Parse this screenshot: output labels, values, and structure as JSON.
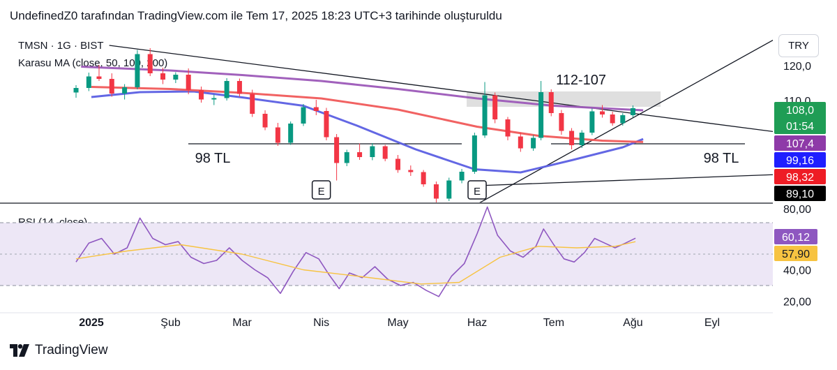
{
  "header": {
    "caption": "UndefinedZ0 tarafından TradingView.com ile Tem 17, 2025 18:23 UTC+3 tarihinde oluşturuldu"
  },
  "legend": {
    "symbol": "TMSN · 1G · BIST",
    "ma_indicator": "Karasu MA (close, 50, 100, 200)",
    "rsi_indicator": "RSI (14, close)"
  },
  "currency_button": "TRY",
  "brand": {
    "name": "TradingView",
    "logo_icon": "tradingview-logo-icon"
  },
  "colors": {
    "up": "#089981",
    "down": "#f23645",
    "ma50": "#5b5fe3",
    "ma100": "#f05a5a",
    "ma200": "#9c59b8",
    "rsi": "#8e57c0",
    "rsi_ma": "#f7c341",
    "rsi_band": "#ede7f6",
    "price_label_green": "#1f9d55",
    "trendline": "#131722"
  },
  "chart_data": [
    {
      "type": "candlestick",
      "x_axis_labels": [
        "2025",
        "Şub",
        "Mar",
        "Nis",
        "May",
        "Haz",
        "Tem",
        "Ağu",
        "Eyl"
      ],
      "x_label_dates": [
        "2025-01-01",
        "2025-02-01",
        "2025-03-01",
        "2025-04-01",
        "2025-05-01",
        "2025-06-01",
        "2025-07-01",
        "2025-08-01",
        "2025-09-01"
      ],
      "y_axis_labels": [
        "120,0",
        "110,0",
        "80,00"
      ],
      "ylim": [
        80,
        125
      ],
      "candles": [
        {
          "date": "2024-12-26",
          "open": 112.5,
          "high": 114.6,
          "low": 111.0,
          "close": 113.8
        },
        {
          "date": "2024-12-31",
          "open": 113.8,
          "high": 118.2,
          "low": 112.9,
          "close": 117.1
        },
        {
          "date": "2025-01-04",
          "open": 117.1,
          "high": 120.4,
          "low": 115.8,
          "close": 116.4
        },
        {
          "date": "2025-01-09",
          "open": 116.4,
          "high": 118.0,
          "low": 111.3,
          "close": 112.2
        },
        {
          "date": "2025-01-14",
          "open": 112.2,
          "high": 114.9,
          "low": 110.5,
          "close": 114.0
        },
        {
          "date": "2025-01-19",
          "open": 114.0,
          "high": 124.7,
          "low": 113.4,
          "close": 123.5
        },
        {
          "date": "2025-01-24",
          "open": 123.5,
          "high": 125.2,
          "low": 117.2,
          "close": 118.0
        },
        {
          "date": "2025-01-29",
          "open": 118.0,
          "high": 119.6,
          "low": 114.9,
          "close": 116.2
        },
        {
          "date": "2025-02-03",
          "open": 116.2,
          "high": 118.3,
          "low": 115.2,
          "close": 117.6
        },
        {
          "date": "2025-02-08",
          "open": 117.6,
          "high": 119.4,
          "low": 112.0,
          "close": 113.2
        },
        {
          "date": "2025-02-13",
          "open": 113.2,
          "high": 114.2,
          "low": 109.6,
          "close": 110.5
        },
        {
          "date": "2025-02-18",
          "open": 110.5,
          "high": 111.9,
          "low": 108.9,
          "close": 110.9
        },
        {
          "date": "2025-02-23",
          "open": 110.9,
          "high": 116.6,
          "low": 110.2,
          "close": 115.8
        },
        {
          "date": "2025-02-28",
          "open": 115.8,
          "high": 116.5,
          "low": 111.3,
          "close": 112.1
        },
        {
          "date": "2025-03-05",
          "open": 112.1,
          "high": 113.3,
          "low": 105.5,
          "close": 106.4
        },
        {
          "date": "2025-03-10",
          "open": 106.4,
          "high": 107.4,
          "low": 101.7,
          "close": 102.5
        },
        {
          "date": "2025-03-15",
          "open": 102.5,
          "high": 103.8,
          "low": 97.2,
          "close": 98.1
        },
        {
          "date": "2025-03-20",
          "open": 98.1,
          "high": 104.2,
          "low": 97.5,
          "close": 103.6
        },
        {
          "date": "2025-03-25",
          "open": 103.6,
          "high": 109.2,
          "low": 102.9,
          "close": 108.3
        },
        {
          "date": "2025-03-30",
          "open": 108.3,
          "high": 110.4,
          "low": 106.0,
          "close": 107.2
        },
        {
          "date": "2025-04-03",
          "open": 107.2,
          "high": 108.1,
          "low": 98.8,
          "close": 99.7
        },
        {
          "date": "2025-04-07",
          "open": 99.7,
          "high": 100.6,
          "low": 87.3,
          "close": 92.3
        },
        {
          "date": "2025-04-11",
          "open": 92.3,
          "high": 96.1,
          "low": 91.4,
          "close": 95.4
        },
        {
          "date": "2025-04-16",
          "open": 95.4,
          "high": 97.9,
          "low": 93.2,
          "close": 94.0
        },
        {
          "date": "2025-04-21",
          "open": 94.0,
          "high": 98.0,
          "low": 93.1,
          "close": 97.1
        },
        {
          "date": "2025-04-26",
          "open": 97.1,
          "high": 97.5,
          "low": 92.8,
          "close": 93.5
        },
        {
          "date": "2025-05-01",
          "open": 93.5,
          "high": 94.6,
          "low": 89.5,
          "close": 90.3
        },
        {
          "date": "2025-05-06",
          "open": 90.3,
          "high": 91.6,
          "low": 88.6,
          "close": 89.7
        },
        {
          "date": "2025-05-11",
          "open": 89.7,
          "high": 90.3,
          "low": 85.5,
          "close": 86.2
        },
        {
          "date": "2025-05-16",
          "open": 86.2,
          "high": 87.0,
          "low": 80.0,
          "close": 82.1
        },
        {
          "date": "2025-05-21",
          "open": 82.1,
          "high": 88.1,
          "low": 81.4,
          "close": 87.3
        },
        {
          "date": "2025-05-26",
          "open": 87.3,
          "high": 90.6,
          "low": 86.5,
          "close": 89.8
        },
        {
          "date": "2025-05-31",
          "open": 89.8,
          "high": 101.0,
          "low": 89.2,
          "close": 100.2
        },
        {
          "date": "2025-06-04",
          "open": 100.2,
          "high": 115.5,
          "low": 99.5,
          "close": 111.7
        },
        {
          "date": "2025-06-08",
          "open": 111.7,
          "high": 112.5,
          "low": 103.7,
          "close": 104.8
        },
        {
          "date": "2025-06-13",
          "open": 104.8,
          "high": 105.5,
          "low": 98.8,
          "close": 99.9
        },
        {
          "date": "2025-06-18",
          "open": 99.9,
          "high": 101.0,
          "low": 95.5,
          "close": 96.5
        },
        {
          "date": "2025-06-23",
          "open": 96.5,
          "high": 100.3,
          "low": 95.8,
          "close": 99.5
        },
        {
          "date": "2025-06-26",
          "open": 99.5,
          "high": 115.8,
          "low": 98.8,
          "close": 112.6
        },
        {
          "date": "2025-06-30",
          "open": 112.6,
          "high": 113.4,
          "low": 105.7,
          "close": 106.6
        },
        {
          "date": "2025-07-04",
          "open": 106.6,
          "high": 107.5,
          "low": 100.4,
          "close": 101.5
        },
        {
          "date": "2025-07-08",
          "open": 101.5,
          "high": 102.3,
          "low": 96.2,
          "close": 97.4
        },
        {
          "date": "2025-07-12",
          "open": 97.4,
          "high": 101.7,
          "low": 96.6,
          "close": 101.0
        },
        {
          "date": "2025-07-16",
          "open": 101.0,
          "high": 107.9,
          "low": 100.3,
          "close": 107.1
        },
        {
          "date": "2025-07-20",
          "open": 107.1,
          "high": 108.9,
          "low": 105.3,
          "close": 106.2
        },
        {
          "date": "2025-07-24",
          "open": 106.2,
          "high": 107.0,
          "low": 103.0,
          "close": 103.7
        },
        {
          "date": "2025-07-28",
          "open": 103.7,
          "high": 106.6,
          "low": 103.0,
          "close": 106.0
        },
        {
          "date": "2025-08-01",
          "open": 106.0,
          "high": 108.8,
          "low": 105.4,
          "close": 108.0
        }
      ],
      "series": [
        {
          "name": "50",
          "points": [
            [
              "2025-01-01",
              111.2
            ],
            [
              "2025-01-20",
              112.6
            ],
            [
              "2025-02-10",
              112.8
            ],
            [
              "2025-03-01",
              111.1
            ],
            [
              "2025-03-25",
              108.7
            ],
            [
              "2025-04-15",
              103.0
            ],
            [
              "2025-05-08",
              96.2
            ],
            [
              "2025-05-31",
              90.5
            ],
            [
              "2025-06-18",
              89.6
            ],
            [
              "2025-07-08",
              93.1
            ],
            [
              "2025-07-28",
              96.8
            ],
            [
              "2025-08-05",
              99.16
            ]
          ]
        },
        {
          "name": "100",
          "points": [
            [
              "2025-01-01",
              114.1
            ],
            [
              "2025-02-01",
              113.5
            ],
            [
              "2025-03-01",
              112.4
            ],
            [
              "2025-04-01",
              110.8
            ],
            [
              "2025-05-01",
              107.6
            ],
            [
              "2025-06-01",
              102.7
            ],
            [
              "2025-06-25",
              100.1
            ],
            [
              "2025-07-20",
              98.7
            ],
            [
              "2025-08-05",
              98.32
            ]
          ]
        },
        {
          "name": "200",
          "points": [
            [
              "2024-12-28",
              119.9
            ],
            [
              "2025-02-01",
              118.8
            ],
            [
              "2025-03-01",
              117.5
            ],
            [
              "2025-04-01",
              115.8
            ],
            [
              "2025-05-01",
              113.5
            ],
            [
              "2025-06-01",
              110.8
            ],
            [
              "2025-07-01",
              108.7
            ],
            [
              "2025-08-05",
              107.4
            ]
          ]
        }
      ],
      "annotations": [
        {
          "text": "112-107",
          "kind": "zone",
          "from_date": "2025-06-01",
          "to_date": "2025-08-05",
          "y_low": 107,
          "y_high": 112
        },
        {
          "text": "98 TL",
          "kind": "level",
          "from_date": "2025-03-10",
          "to_date": "2025-06-01",
          "y": 98
        },
        {
          "text": "98 TL",
          "kind": "level",
          "from_date": "2025-07-28",
          "to_date": "2025-09-30",
          "y": 98
        },
        {
          "text": "E",
          "kind": "event",
          "date": "2025-04-01"
        },
        {
          "text": "E",
          "kind": "event",
          "date": "2025-06-01"
        }
      ],
      "trendlines": [
        {
          "from": [
            "2025-01-08",
            126.0
          ],
          "to": [
            "2025-09-25",
            101.3
          ]
        },
        {
          "from": [
            "2025-05-31",
            80.1
          ],
          "to": [
            "2025-10-01",
            130.0
          ]
        },
        {
          "from": [
            "2025-06-01",
            85.8
          ],
          "to": [
            "2025-09-30",
            89.1
          ]
        }
      ],
      "price_labels": [
        {
          "value": "108,0",
          "sub": "01:54",
          "color": "#1f9d55"
        },
        {
          "value": "107,4",
          "color": "#8e3aa8"
        },
        {
          "value": "99,16",
          "color": "#1f1fff"
        },
        {
          "value": "98,32",
          "color": "#ee1c25"
        },
        {
          "value": "89,10",
          "color": "#000000"
        }
      ]
    },
    {
      "type": "line",
      "name": "RSI",
      "y_axis_labels": [
        "80,00",
        "40,00",
        "20,00"
      ],
      "ylim": [
        10,
        85
      ],
      "band": [
        30,
        70
      ],
      "midline": 50,
      "series": [
        {
          "name": "RSI",
          "points": [
            [
              "2024-12-26",
              45
            ],
            [
              "2024-12-31",
              57
            ],
            [
              "2025-01-05",
              60
            ],
            [
              "2025-01-10",
              50
            ],
            [
              "2025-01-15",
              54
            ],
            [
              "2025-01-20",
              73
            ],
            [
              "2025-01-25",
              60
            ],
            [
              "2025-01-30",
              56
            ],
            [
              "2025-02-04",
              58
            ],
            [
              "2025-02-09",
              48
            ],
            [
              "2025-02-14",
              44
            ],
            [
              "2025-02-19",
              46
            ],
            [
              "2025-02-24",
              54
            ],
            [
              "2025-03-01",
              46
            ],
            [
              "2025-03-06",
              40
            ],
            [
              "2025-03-11",
              35
            ],
            [
              "2025-03-16",
              25
            ],
            [
              "2025-03-21",
              39
            ],
            [
              "2025-03-26",
              51
            ],
            [
              "2025-03-31",
              47
            ],
            [
              "2025-04-04",
              37
            ],
            [
              "2025-04-08",
              28
            ],
            [
              "2025-04-12",
              38
            ],
            [
              "2025-04-17",
              35
            ],
            [
              "2025-04-22",
              42
            ],
            [
              "2025-04-27",
              34
            ],
            [
              "2025-05-02",
              30
            ],
            [
              "2025-05-07",
              32
            ],
            [
              "2025-05-12",
              27
            ],
            [
              "2025-05-17",
              23
            ],
            [
              "2025-05-22",
              36
            ],
            [
              "2025-05-27",
              44
            ],
            [
              "2025-06-01",
              63
            ],
            [
              "2025-06-05",
              80
            ],
            [
              "2025-06-09",
              62
            ],
            [
              "2025-06-14",
              52
            ],
            [
              "2025-06-19",
              48
            ],
            [
              "2025-06-24",
              55
            ],
            [
              "2025-06-27",
              66
            ],
            [
              "2025-07-01",
              56
            ],
            [
              "2025-07-05",
              47
            ],
            [
              "2025-07-09",
              45
            ],
            [
              "2025-07-13",
              51
            ],
            [
              "2025-07-17",
              60
            ],
            [
              "2025-07-21",
              57
            ],
            [
              "2025-07-25",
              54
            ],
            [
              "2025-07-29",
              57
            ],
            [
              "2025-08-02",
              60.12
            ]
          ]
        },
        {
          "name": "MA",
          "points": [
            [
              "2024-12-26",
              47
            ],
            [
              "2025-01-15",
              52
            ],
            [
              "2025-02-05",
              56
            ],
            [
              "2025-03-01",
              50
            ],
            [
              "2025-03-25",
              40
            ],
            [
              "2025-04-15",
              36
            ],
            [
              "2025-05-10",
              31
            ],
            [
              "2025-05-25",
              32
            ],
            [
              "2025-06-10",
              48
            ],
            [
              "2025-06-25",
              55
            ],
            [
              "2025-07-10",
              54
            ],
            [
              "2025-07-25",
              55
            ],
            [
              "2025-08-02",
              57.9
            ]
          ]
        }
      ],
      "price_labels": [
        {
          "value": "60,12",
          "color": "#8e57c0"
        },
        {
          "value": "57,90",
          "color": "#f7c341"
        }
      ]
    }
  ]
}
